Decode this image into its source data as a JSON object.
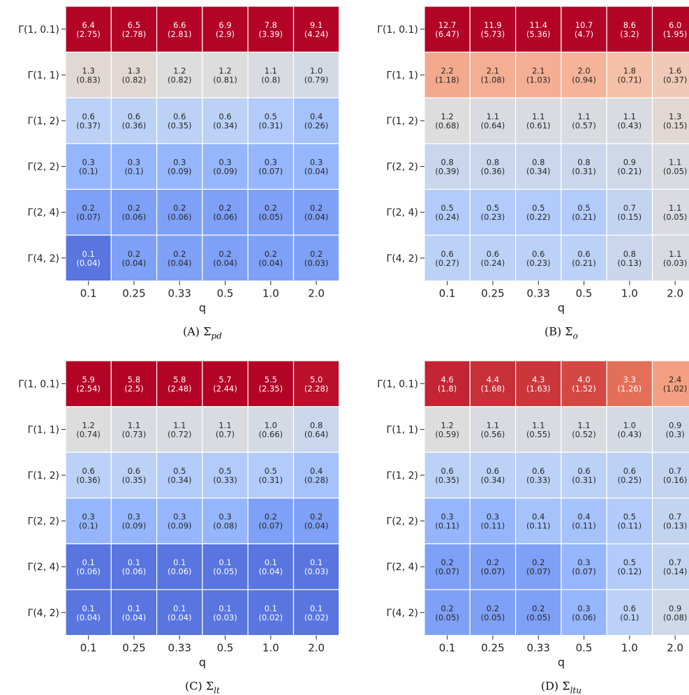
{
  "chart_data": [
    {
      "type": "heatmap",
      "caption": {
        "label": "(A)",
        "math": "Σ",
        "sub": "pd"
      },
      "xlabel": "q",
      "x_categories": [
        "0.1",
        "0.25",
        "0.33",
        "0.5",
        "1.0",
        "2.0"
      ],
      "y_categories": [
        "Γ(1, 0.1)",
        "Γ(1, 1)",
        "Γ(1, 2)",
        "Γ(2, 2)",
        "Γ(2, 4)",
        "Γ(4, 2)"
      ],
      "values": [
        [
          6.4,
          6.5,
          6.6,
          6.9,
          7.8,
          9.1
        ],
        [
          1.3,
          1.3,
          1.2,
          1.2,
          1.1,
          1.0
        ],
        [
          0.6,
          0.6,
          0.6,
          0.6,
          0.5,
          0.4
        ],
        [
          0.3,
          0.3,
          0.3,
          0.3,
          0.3,
          0.3
        ],
        [
          0.2,
          0.2,
          0.2,
          0.2,
          0.2,
          0.2
        ],
        [
          0.1,
          0.2,
          0.2,
          0.2,
          0.2,
          0.2
        ]
      ],
      "values_text": [
        [
          "6.4",
          "6.5",
          "6.6",
          "6.9",
          "7.8",
          "9.1"
        ],
        [
          "1.3",
          "1.3",
          "1.2",
          "1.2",
          "1.1",
          "1.0"
        ],
        [
          "0.6",
          "0.6",
          "0.6",
          "0.6",
          "0.5",
          "0.4"
        ],
        [
          "0.3",
          "0.3",
          "0.3",
          "0.3",
          "0.3",
          "0.3"
        ],
        [
          "0.2",
          "0.2",
          "0.2",
          "0.2",
          "0.2",
          "0.2"
        ],
        [
          "0.1",
          "0.2",
          "0.2",
          "0.2",
          "0.2",
          "0.2"
        ]
      ],
      "stds_text": [
        [
          "(2.75)",
          "(2.78)",
          "(2.81)",
          "(2.9)",
          "(3.39)",
          "(4.24)"
        ],
        [
          "(0.83)",
          "(0.82)",
          "(0.82)",
          "(0.81)",
          "(0.8)",
          "(0.79)"
        ],
        [
          "(0.37)",
          "(0.36)",
          "(0.35)",
          "(0.34)",
          "(0.31)",
          "(0.26)"
        ],
        [
          "(0.1)",
          "(0.1)",
          "(0.09)",
          "(0.09)",
          "(0.07)",
          "(0.04)"
        ],
        [
          "(0.07)",
          "(0.06)",
          "(0.06)",
          "(0.06)",
          "(0.05)",
          "(0.04)"
        ],
        [
          "(0.04)",
          "(0.04)",
          "(0.04)",
          "(0.04)",
          "(0.04)",
          "(0.03)"
        ]
      ],
      "color_scale": "coolwarm"
    },
    {
      "type": "heatmap",
      "caption": {
        "label": "(B)",
        "math": "Σ",
        "sub": "o"
      },
      "xlabel": "q",
      "x_categories": [
        "0.1",
        "0.25",
        "0.33",
        "0.5",
        "1.0",
        "2.0"
      ],
      "y_categories": [
        "Γ(1, 0.1)",
        "Γ(1, 1)",
        "Γ(1, 2)",
        "Γ(2, 2)",
        "Γ(2, 4)",
        "Γ(4, 2)"
      ],
      "values": [
        [
          12.7,
          11.9,
          11.4,
          10.7,
          8.6,
          6.0
        ],
        [
          2.2,
          2.1,
          2.1,
          2.0,
          1.8,
          1.6
        ],
        [
          1.2,
          1.1,
          1.1,
          1.1,
          1.1,
          1.3
        ],
        [
          0.8,
          0.8,
          0.8,
          0.8,
          0.9,
          1.1
        ],
        [
          0.5,
          0.5,
          0.5,
          0.5,
          0.7,
          1.1
        ],
        [
          0.6,
          0.6,
          0.6,
          0.6,
          0.8,
          1.1
        ]
      ],
      "values_text": [
        [
          "12.7",
          "11.9",
          "11.4",
          "10.7",
          "8.6",
          "6.0"
        ],
        [
          "2.2",
          "2.1",
          "2.1",
          "2.0",
          "1.8",
          "1.6"
        ],
        [
          "1.2",
          "1.1",
          "1.1",
          "1.1",
          "1.1",
          "1.3"
        ],
        [
          "0.8",
          "0.8",
          "0.8",
          "0.8",
          "0.9",
          "1.1"
        ],
        [
          "0.5",
          "0.5",
          "0.5",
          "0.5",
          "0.7",
          "1.1"
        ],
        [
          "0.6",
          "0.6",
          "0.6",
          "0.6",
          "0.8",
          "1.1"
        ]
      ],
      "stds_text": [
        [
          "(6.47)",
          "(5.73)",
          "(5.36)",
          "(4.7)",
          "(3.2)",
          "(1.95)"
        ],
        [
          "(1.18)",
          "(1.08)",
          "(1.03)",
          "(0.94)",
          "(0.71)",
          "(0.37)"
        ],
        [
          "(0.68)",
          "(0.64)",
          "(0.61)",
          "(0.57)",
          "(0.43)",
          "(0.15)"
        ],
        [
          "(0.39)",
          "(0.36)",
          "(0.34)",
          "(0.31)",
          "(0.21)",
          "(0.05)"
        ],
        [
          "(0.24)",
          "(0.23)",
          "(0.22)",
          "(0.21)",
          "(0.15)",
          "(0.05)"
        ],
        [
          "(0.27)",
          "(0.24)",
          "(0.23)",
          "(0.21)",
          "(0.13)",
          "(0.03)"
        ]
      ],
      "color_scale": "coolwarm"
    },
    {
      "type": "heatmap",
      "caption": {
        "label": "(C)",
        "math": "Σ",
        "sub": "lt"
      },
      "xlabel": "q",
      "x_categories": [
        "0.1",
        "0.25",
        "0.33",
        "0.5",
        "1.0",
        "2.0"
      ],
      "y_categories": [
        "Γ(1, 0.1)",
        "Γ(1, 1)",
        "Γ(1, 2)",
        "Γ(2, 2)",
        "Γ(2, 4)",
        "Γ(4, 2)"
      ],
      "values": [
        [
          5.9,
          5.8,
          5.8,
          5.7,
          5.5,
          5.0
        ],
        [
          1.2,
          1.1,
          1.1,
          1.1,
          1.0,
          0.8
        ],
        [
          0.6,
          0.6,
          0.5,
          0.5,
          0.5,
          0.4
        ],
        [
          0.3,
          0.3,
          0.3,
          0.3,
          0.2,
          0.2
        ],
        [
          0.1,
          0.1,
          0.1,
          0.1,
          0.1,
          0.1
        ],
        [
          0.1,
          0.1,
          0.1,
          0.1,
          0.1,
          0.1
        ]
      ],
      "values_text": [
        [
          "5.9",
          "5.8",
          "5.8",
          "5.7",
          "5.5",
          "5.0"
        ],
        [
          "1.2",
          "1.1",
          "1.1",
          "1.1",
          "1.0",
          "0.8"
        ],
        [
          "0.6",
          "0.6",
          "0.5",
          "0.5",
          "0.5",
          "0.4"
        ],
        [
          "0.3",
          "0.3",
          "0.3",
          "0.3",
          "0.2",
          "0.2"
        ],
        [
          "0.1",
          "0.1",
          "0.1",
          "0.1",
          "0.1",
          "0.1"
        ],
        [
          "0.1",
          "0.1",
          "0.1",
          "0.1",
          "0.1",
          "0.1"
        ]
      ],
      "stds_text": [
        [
          "(2.54)",
          "(2.5)",
          "(2.48)",
          "(2.44)",
          "(2.35)",
          "(2.28)"
        ],
        [
          "(0.74)",
          "(0.73)",
          "(0.72)",
          "(0.7)",
          "(0.66)",
          "(0.64)"
        ],
        [
          "(0.36)",
          "(0.35)",
          "(0.34)",
          "(0.33)",
          "(0.31)",
          "(0.28)"
        ],
        [
          "(0.1)",
          "(0.09)",
          "(0.09)",
          "(0.08)",
          "(0.07)",
          "(0.04)"
        ],
        [
          "(0.06)",
          "(0.06)",
          "(0.06)",
          "(0.05)",
          "(0.04)",
          "(0.03)"
        ],
        [
          "(0.04)",
          "(0.04)",
          "(0.04)",
          "(0.03)",
          "(0.02)",
          "(0.02)"
        ]
      ],
      "color_scale": "coolwarm"
    },
    {
      "type": "heatmap",
      "caption": {
        "label": "(D)",
        "math": "Σ",
        "sub": "ltu"
      },
      "xlabel": "q",
      "x_categories": [
        "0.1",
        "0.25",
        "0.33",
        "0.5",
        "1.0",
        "2.0"
      ],
      "y_categories": [
        "Γ(1, 0.1)",
        "Γ(1, 1)",
        "Γ(1, 2)",
        "Γ(2, 2)",
        "Γ(2, 4)",
        "Γ(4, 2)"
      ],
      "values": [
        [
          4.6,
          4.4,
          4.3,
          4.0,
          3.3,
          2.4
        ],
        [
          1.2,
          1.1,
          1.1,
          1.1,
          1.0,
          0.9
        ],
        [
          0.6,
          0.6,
          0.6,
          0.6,
          0.6,
          0.7
        ],
        [
          0.3,
          0.3,
          0.4,
          0.4,
          0.5,
          0.7
        ],
        [
          0.2,
          0.2,
          0.2,
          0.3,
          0.5,
          0.7
        ],
        [
          0.2,
          0.2,
          0.2,
          0.3,
          0.6,
          0.9
        ]
      ],
      "values_text": [
        [
          "4.6",
          "4.4",
          "4.3",
          "4.0",
          "3.3",
          "2.4"
        ],
        [
          "1.2",
          "1.1",
          "1.1",
          "1.1",
          "1.0",
          "0.9"
        ],
        [
          "0.6",
          "0.6",
          "0.6",
          "0.6",
          "0.6",
          "0.7"
        ],
        [
          "0.3",
          "0.3",
          "0.4",
          "0.4",
          "0.5",
          "0.7"
        ],
        [
          "0.2",
          "0.2",
          "0.2",
          "0.3",
          "0.5",
          "0.7"
        ],
        [
          "0.2",
          "0.2",
          "0.2",
          "0.3",
          "0.6",
          "0.9"
        ]
      ],
      "stds_text": [
        [
          "(1.8)",
          "(1.68)",
          "(1.63)",
          "(1.52)",
          "(1.26)",
          "(1.02)"
        ],
        [
          "(0.59)",
          "(0.56)",
          "(0.55)",
          "(0.52)",
          "(0.43)",
          "(0.3)"
        ],
        [
          "(0.35)",
          "(0.34)",
          "(0.33)",
          "(0.31)",
          "(0.25)",
          "(0.16)"
        ],
        [
          "(0.11)",
          "(0.11)",
          "(0.11)",
          "(0.11)",
          "(0.11)",
          "(0.13)"
        ],
        [
          "(0.07)",
          "(0.07)",
          "(0.07)",
          "(0.07)",
          "(0.12)",
          "(0.14)"
        ],
        [
          "(0.05)",
          "(0.05)",
          "(0.05)",
          "(0.06)",
          "(0.1)",
          "(0.08)"
        ]
      ],
      "color_scale": "coolwarm"
    }
  ]
}
